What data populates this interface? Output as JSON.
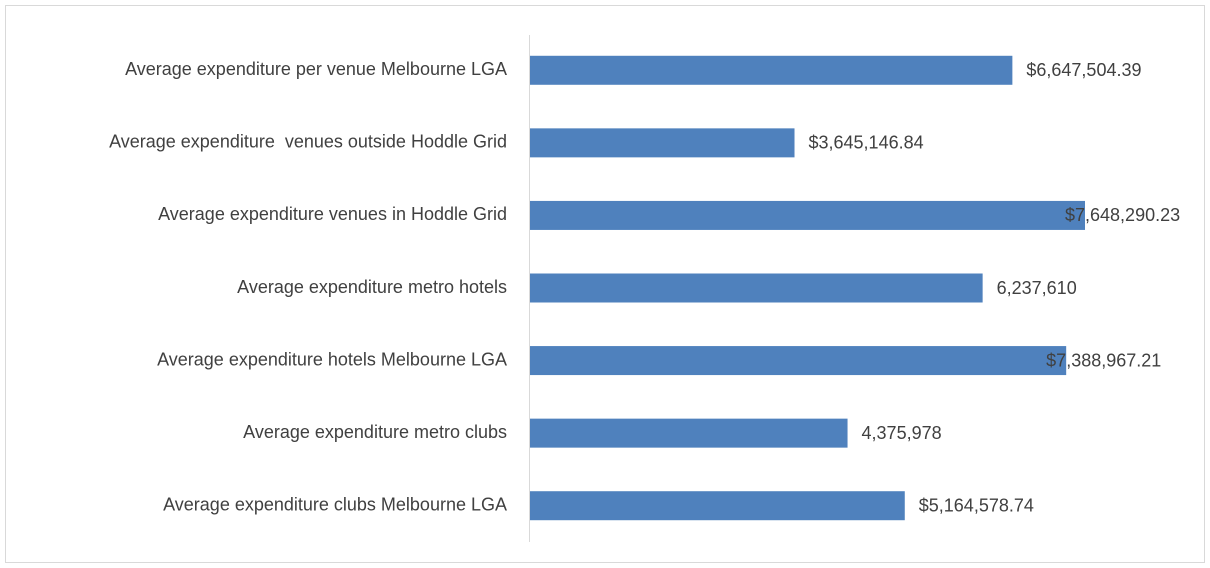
{
  "chart_data": {
    "type": "hbar",
    "categories": [
      "Average expenditure per venue Melbourne LGA",
      "Average expenditure  venues outside Hoddle Grid",
      "Average expenditure venues in Hoddle Grid",
      "Average expenditure metro hotels",
      "Average expenditure hotels Melbourne LGA",
      "Average expenditure metro clubs",
      "Average expenditure clubs Melbourne LGA"
    ],
    "values": [
      6647504.39,
      3645146.84,
      7648290.23,
      6237610,
      7388967.21,
      4375978,
      5164578.74
    ],
    "value_labels": [
      "$6,647,504.39",
      "$3,645,146.84",
      "$7,648,290.23",
      "6,237,610",
      "$7,388,967.21",
      "4,375,978",
      "$5,164,578.74"
    ],
    "color": "#4f81bd"
  }
}
